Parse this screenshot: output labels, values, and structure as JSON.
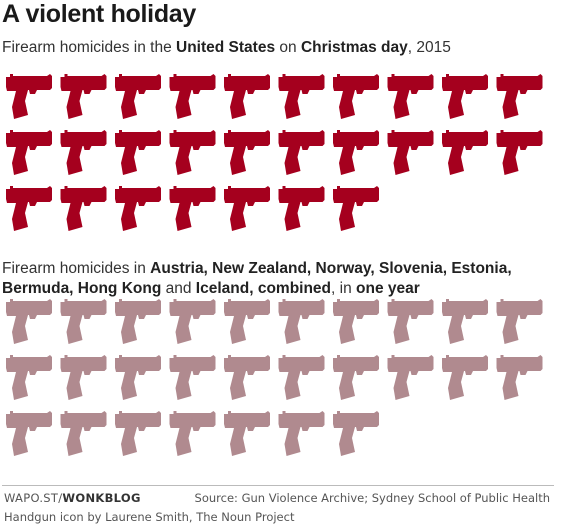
{
  "title": "A violent holiday",
  "subtitle_1": {
    "t1": "Firearm homicides in the ",
    "b1": "United States",
    "t2": " on ",
    "b2": "Christmas day",
    "t3": ", 2015"
  },
  "subtitle_2": {
    "t1": "Firearm homicides in ",
    "b1": "Austria, New Zealand, Norway, Slovenia, Estonia, Bermuda, Hong Kong",
    "t2": " and ",
    "b2": "Iceland, combined",
    "t3": ", in ",
    "b3": "one year"
  },
  "footer": {
    "site": "WAPO.ST/",
    "brand": "WONKBLOG",
    "source": "Source: Gun Violence Archive; Sydney School of Public Health",
    "icon_credit": "Handgun icon by Laurene Smith, The Noun Project"
  },
  "chart_data": {
    "type": "pictogram",
    "icon": "handgun-icon",
    "icons_per_row": 10,
    "series": [
      {
        "name": "United States on Christmas day, 2015",
        "value": 27,
        "color": "#a5001e"
      },
      {
        "name": "Austria, New Zealand, Norway, Slovenia, Estonia, Bermuda, Hong Kong and Iceland, combined, in one year",
        "value": 27,
        "color": "#b08a8f"
      }
    ]
  }
}
